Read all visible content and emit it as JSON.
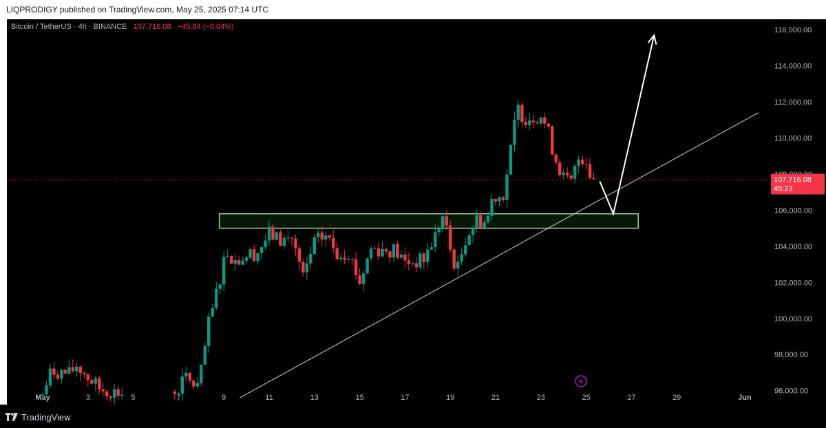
{
  "header": {
    "published_text": "LIQPRODIGY published on TradingView.com, May 25, 2025 07:14 UTC"
  },
  "legend": {
    "symbol": "Bitcoin / TetherUS · 4h · BINANCE",
    "last": "107,716.08",
    "change": "−45.84 (−0.04%)"
  },
  "price_label": {
    "price": "107,716.08",
    "countdown": "45:23"
  },
  "footer": {
    "brand": "TradingView"
  },
  "colors": {
    "up": "#089981",
    "down": "#f23645",
    "zone_border": "#a5d6a7",
    "zone_fill": "#1b5e20",
    "background": "#000000"
  },
  "chart_data": {
    "type": "candlestick",
    "interval": "4h",
    "y_axis": {
      "position": "right",
      "ylim": [
        95300,
        116200
      ],
      "ticks": [
        96000,
        98000,
        100000,
        102000,
        104000,
        106000,
        108000,
        110000,
        112000,
        114000,
        116000
      ],
      "tick_labels": [
        "96,000.00",
        "98,000.00",
        "100,000.00",
        "102,000.00",
        "104,000.00",
        "106,000.00",
        "108,000.00",
        "110,000.00",
        "112,000.00",
        "114,000.00",
        "116,000.00"
      ]
    },
    "x_axis": {
      "xlim_days": [
        30.8,
        31.33
      ],
      "ticks": [
        {
          "label": "May",
          "day": 1
        },
        {
          "label": "3",
          "day": 3
        },
        {
          "label": "5",
          "day": 5
        },
        {
          "label": "7",
          "day": 7
        },
        {
          "label": "9",
          "day": 9
        },
        {
          "label": "11",
          "day": 11
        },
        {
          "label": "13",
          "day": 13
        },
        {
          "label": "15",
          "day": 15
        },
        {
          "label": "17",
          "day": 17
        },
        {
          "label": "19",
          "day": 19
        },
        {
          "label": "21",
          "day": 21
        },
        {
          "label": "23",
          "day": 23
        },
        {
          "label": "25",
          "day": 25
        },
        {
          "label": "27",
          "day": 27
        },
        {
          "label": "29",
          "day": 29
        },
        {
          "label": "Jun",
          "day": 32
        }
      ]
    },
    "last_price": 107716.08,
    "support_zone": {
      "start_day": 8.8,
      "end_day": 27.3,
      "low": 105000,
      "high": 105800
    },
    "trendline": {
      "p1": {
        "day": 9.7,
        "price": 95600
      },
      "p2": {
        "day": 32.6,
        "price": 111400
      }
    },
    "projection_arrow": [
      {
        "day": 25.6,
        "price": 107600
      },
      {
        "day": 26.2,
        "price": 105800
      },
      {
        "day": 28.0,
        "price": 115700
      }
    ],
    "anchor_points": [
      {
        "day": 1.0,
        "price": 95800
      },
      {
        "day": 1.4,
        "price": 97100
      },
      {
        "day": 2.2,
        "price": 96900
      },
      {
        "day": 2.5,
        "price": 97400
      },
      {
        "day": 3.1,
        "price": 96600
      },
      {
        "day": 3.5,
        "price": 96100
      },
      {
        "day": 4.2,
        "price": 95900
      },
      {
        "day": 4.6,
        "price": 95800
      },
      {
        "day": 6.8,
        "price": 95800
      },
      {
        "day": 7.3,
        "price": 96700
      },
      {
        "day": 7.6,
        "price": 96400
      },
      {
        "day": 7.9,
        "price": 96200
      },
      {
        "day": 8.3,
        "price": 99500
      },
      {
        "day": 8.6,
        "price": 101000
      },
      {
        "day": 9.1,
        "price": 103800
      },
      {
        "day": 9.5,
        "price": 103200
      },
      {
        "day": 10.0,
        "price": 103500
      },
      {
        "day": 10.5,
        "price": 103700
      },
      {
        "day": 11.0,
        "price": 104700
      },
      {
        "day": 11.5,
        "price": 104300
      },
      {
        "day": 12.0,
        "price": 104500
      },
      {
        "day": 12.5,
        "price": 102200
      },
      {
        "day": 13.0,
        "price": 104200
      },
      {
        "day": 13.5,
        "price": 104600
      },
      {
        "day": 14.0,
        "price": 103600
      },
      {
        "day": 14.5,
        "price": 103700
      },
      {
        "day": 15.0,
        "price": 102000
      },
      {
        "day": 15.5,
        "price": 103900
      },
      {
        "day": 16.0,
        "price": 103800
      },
      {
        "day": 16.5,
        "price": 103800
      },
      {
        "day": 17.0,
        "price": 103100
      },
      {
        "day": 17.8,
        "price": 103200
      },
      {
        "day": 18.3,
        "price": 104500
      },
      {
        "day": 18.7,
        "price": 105700
      },
      {
        "day": 19.0,
        "price": 103800
      },
      {
        "day": 19.3,
        "price": 102600
      },
      {
        "day": 19.7,
        "price": 104600
      },
      {
        "day": 20.2,
        "price": 105500
      },
      {
        "day": 20.6,
        "price": 105300
      },
      {
        "day": 20.9,
        "price": 106900
      },
      {
        "day": 21.3,
        "price": 106700
      },
      {
        "day": 21.6,
        "price": 108700
      },
      {
        "day": 21.95,
        "price": 111700
      },
      {
        "day": 22.3,
        "price": 111100
      },
      {
        "day": 22.7,
        "price": 111200
      },
      {
        "day": 23.0,
        "price": 111300
      },
      {
        "day": 23.3,
        "price": 110400
      },
      {
        "day": 23.6,
        "price": 109000
      },
      {
        "day": 24.0,
        "price": 107800
      },
      {
        "day": 24.3,
        "price": 107400
      },
      {
        "day": 24.7,
        "price": 109000
      },
      {
        "day": 25.0,
        "price": 108800
      },
      {
        "day": 25.2,
        "price": 107900
      },
      {
        "day": 25.4,
        "price": 107716
      }
    ]
  }
}
